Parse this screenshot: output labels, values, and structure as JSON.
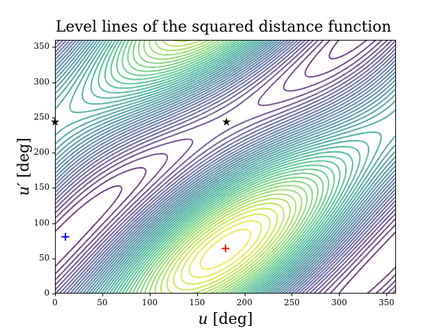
{
  "chart_data": {
    "type": "contour",
    "title": "Level lines of the squared distance function",
    "xlabel": "u [deg]",
    "ylabel": "u' [deg]",
    "xlabel_var": "u",
    "ylabel_var": "u′",
    "unit": "[deg]",
    "xlim": [
      0,
      360
    ],
    "ylim": [
      0,
      360
    ],
    "xticks": [
      0,
      50,
      100,
      150,
      200,
      250,
      300,
      350
    ],
    "yticks": [
      0,
      50,
      100,
      150,
      200,
      250,
      300,
      350
    ],
    "colormap": "viridis",
    "grid": false,
    "maximum_region_center": [
      180,
      63
    ],
    "minimum_regions": [
      [
        330,
        320
      ],
      [
        0,
        130
      ]
    ],
    "markers": [
      {
        "name": "red-plus",
        "shape": "+",
        "color": "#ff0000",
        "u": 180,
        "u_prime": 63
      },
      {
        "name": "blue-plus",
        "shape": "+",
        "color": "#0000ff",
        "u": 11,
        "u_prime": 80
      },
      {
        "name": "star-left",
        "shape": "★",
        "color": "#000000",
        "u": 0,
        "u_prime": 243
      },
      {
        "name": "star-center",
        "shape": "★",
        "color": "#000000",
        "u": 181,
        "u_prime": 243
      }
    ]
  }
}
